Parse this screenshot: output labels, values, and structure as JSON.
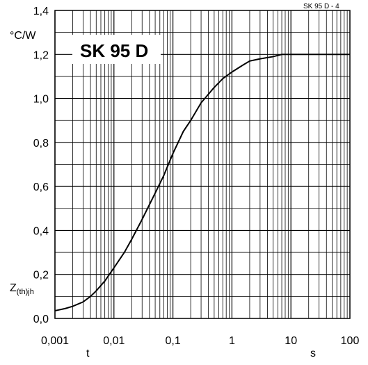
{
  "chart_data": {
    "type": "line",
    "title": "SK 95 D",
    "figure_id": "SK 95 D - 4",
    "ylabel_unit": "°C/W",
    "ylabel_main": "Z",
    "ylabel_sub": "(th)jh",
    "xlabel": "t",
    "xlabel_unit": "s",
    "x_scale": "log",
    "xlim": [
      0.001,
      100
    ],
    "ylim": [
      0,
      1.4
    ],
    "grid": true,
    "x_ticks": [
      "0,001",
      "0,01",
      "0,1",
      "1",
      "10",
      "100"
    ],
    "y_ticks": [
      "0,0",
      "0,2",
      "0,4",
      "0,6",
      "0,8",
      "1,0",
      "1,2",
      "1,4"
    ],
    "series": [
      {
        "x": [
          0.001,
          0.0015,
          0.002,
          0.003,
          0.004,
          0.005,
          0.007,
          0.01,
          0.015,
          0.02,
          0.03,
          0.05,
          0.07,
          0.1,
          0.15,
          0.2,
          0.3,
          0.5,
          0.7,
          1,
          1.5,
          2,
          3,
          5,
          7,
          10,
          20,
          50,
          100
        ],
        "y": [
          0.035,
          0.045,
          0.055,
          0.075,
          0.1,
          0.125,
          0.17,
          0.23,
          0.3,
          0.36,
          0.45,
          0.57,
          0.65,
          0.75,
          0.85,
          0.9,
          0.98,
          1.05,
          1.09,
          1.12,
          1.15,
          1.17,
          1.18,
          1.19,
          1.2,
          1.2,
          1.2,
          1.2,
          1.2
        ]
      }
    ]
  }
}
